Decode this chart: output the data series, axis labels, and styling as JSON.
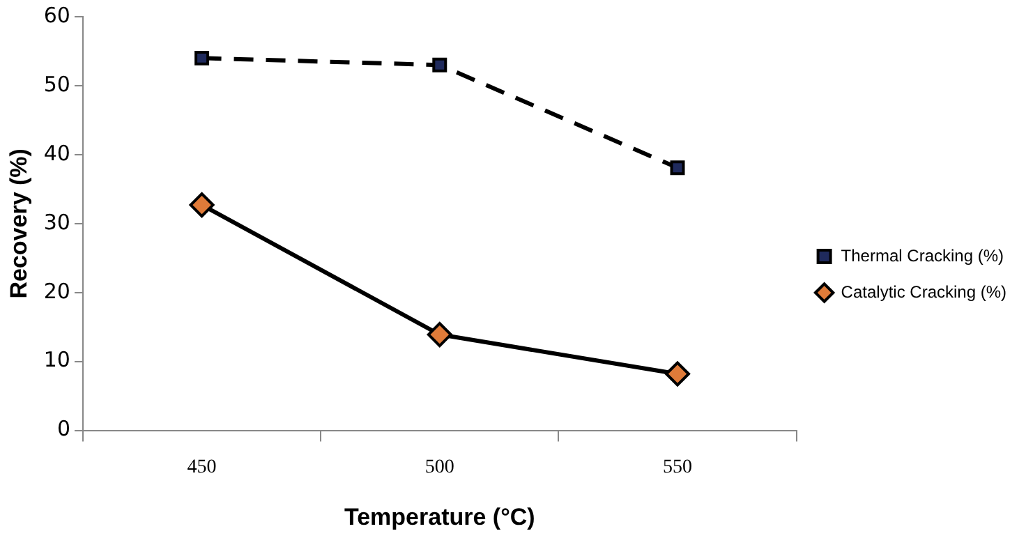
{
  "chart_data": {
    "type": "line",
    "xlabel": "Temperature (°C)",
    "ylabel": "Recovery (%)",
    "categories": [
      "450",
      "500",
      "550"
    ],
    "series": [
      {
        "name": "Thermal Cracking (%)",
        "color": "#1f2a5c",
        "values": [
          54.0,
          53.0,
          38.1
        ],
        "marker": "square",
        "line_style": "dashed"
      },
      {
        "name": "Catalytic Cracking (%)",
        "color": "#e07b39",
        "values": [
          32.7,
          13.9,
          8.2
        ],
        "marker": "diamond",
        "line_style": "solid"
      }
    ],
    "ylim": [
      0,
      60
    ],
    "yticks": [
      0,
      10,
      20,
      30,
      40,
      50,
      60
    ],
    "grid": false,
    "legend": "right"
  }
}
